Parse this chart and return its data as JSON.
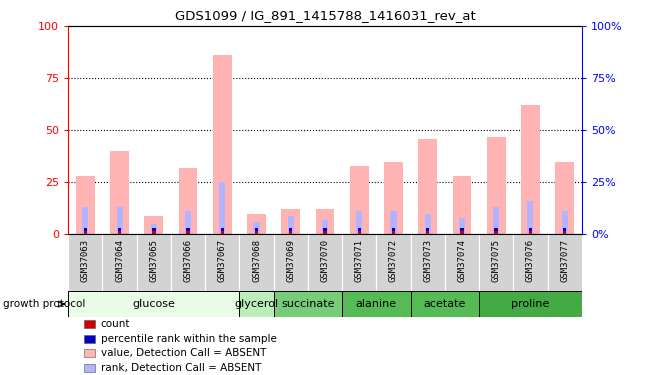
{
  "title": "GDS1099 / IG_891_1415788_1416031_rev_at",
  "samples": [
    "GSM37063",
    "GSM37064",
    "GSM37065",
    "GSM37066",
    "GSM37067",
    "GSM37068",
    "GSM37069",
    "GSM37070",
    "GSM37071",
    "GSM37072",
    "GSM37073",
    "GSM37074",
    "GSM37075",
    "GSM37076",
    "GSM37077"
  ],
  "value_absent": [
    28,
    40,
    9,
    32,
    86,
    10,
    12,
    12,
    33,
    35,
    46,
    28,
    47,
    62,
    35
  ],
  "rank_absent": [
    13,
    13,
    5,
    11,
    25,
    6,
    9,
    7,
    11,
    11,
    10,
    8,
    13,
    16,
    11
  ],
  "count": [
    1,
    1,
    1,
    1,
    1,
    1,
    1,
    1,
    1,
    1,
    1,
    1,
    1,
    1,
    1
  ],
  "percentile": [
    13,
    13,
    5,
    11,
    25,
    6,
    9,
    7,
    11,
    11,
    10,
    8,
    13,
    16,
    11
  ],
  "groups": [
    {
      "label": "glucose",
      "start": 0,
      "end": 5
    },
    {
      "label": "glycerol",
      "start": 5,
      "end": 6
    },
    {
      "label": "succinate",
      "start": 6,
      "end": 8
    },
    {
      "label": "alanine",
      "start": 8,
      "end": 10
    },
    {
      "label": "acetate",
      "start": 10,
      "end": 12
    },
    {
      "label": "proline",
      "start": 12,
      "end": 15
    }
  ],
  "group_bg_colors": {
    "glucose": "#e8fce8",
    "glycerol": "#bbeebb",
    "succinate": "#77cc77",
    "alanine": "#55bb55",
    "acetate": "#55bb55",
    "proline": "#44aa44"
  },
  "ylim": [
    0,
    100
  ],
  "yticks": [
    0,
    25,
    50,
    75,
    100
  ],
  "color_value_absent": "#ffb3b3",
  "color_rank_absent": "#b3b3ff",
  "color_count": "#cc0000",
  "color_percentile": "#0000cc",
  "sample_cell_color": "#d3d3d3",
  "bg_color": "#ffffff",
  "legend_items": [
    {
      "color": "#cc0000",
      "label": "count"
    },
    {
      "color": "#0000cc",
      "label": "percentile rank within the sample"
    },
    {
      "color": "#ffb3b3",
      "label": "value, Detection Call = ABSENT"
    },
    {
      "color": "#b3b3ff",
      "label": "rank, Detection Call = ABSENT"
    }
  ]
}
